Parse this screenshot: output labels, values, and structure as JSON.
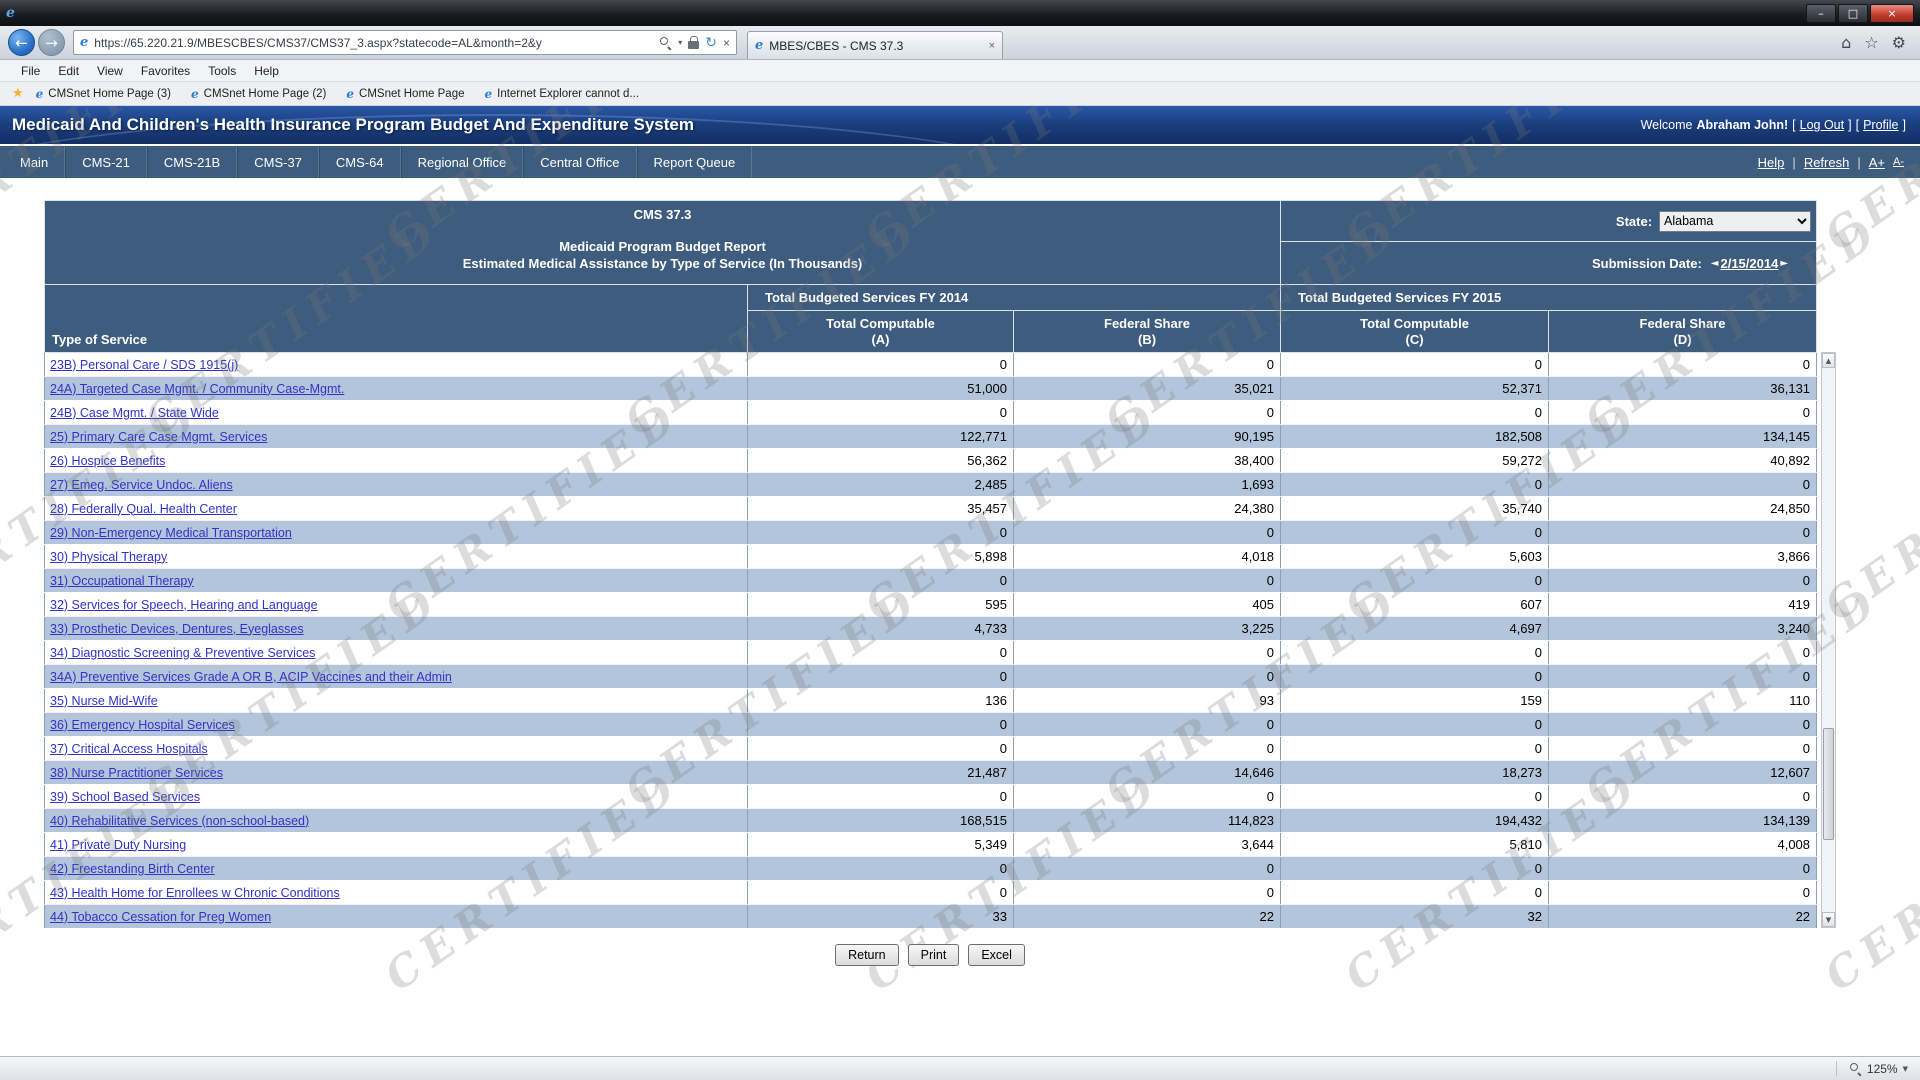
{
  "browser": {
    "url": "https://65.220.21.9/MBESCBES/CMS37/CMS37_3.aspx?statecode=AL&month=2&y",
    "tab_title": "MBES/CBES - CMS 37.3",
    "menu_items": [
      "File",
      "Edit",
      "View",
      "Favorites",
      "Tools",
      "Help"
    ],
    "favorites_items": [
      "CMSnet Home Page (3)",
      "CMSnet Home Page (2)",
      "CMSnet Home Page",
      "Internet Explorer cannot d..."
    ],
    "zoom_level": "125%"
  },
  "icons": {
    "back": "←",
    "forward": "→",
    "search_caret": "▾",
    "stop": "×",
    "refresh": "↻",
    "tab_close": "×",
    "home": "⌂",
    "star_outline": "☆",
    "tools_gear": "⚙",
    "favorites_star": "★",
    "minimize": "–",
    "maximize": "□",
    "close": "×",
    "prev_date": "◄",
    "next_date": "►",
    "scroll_up": "▲",
    "scroll_down": "▼",
    "zoom_caret": "▼"
  },
  "header": {
    "title": "Medicaid And Children's Health Insurance Program Budget And Expenditure System",
    "welcome_prefix": "Welcome",
    "user": "Abraham John!",
    "bracket_open": "[",
    "bracket_close": "]",
    "logout": "Log Out",
    "profile": "Profile"
  },
  "nav": {
    "items": [
      "Main",
      "CMS-21",
      "CMS-21B",
      "CMS-37",
      "CMS-64",
      "Regional Office",
      "Central Office",
      "Report Queue"
    ],
    "help": "Help",
    "refresh": "Refresh",
    "separator": "|",
    "font_increase": "A+",
    "font_decrease": "A-"
  },
  "report": {
    "code": "CMS 37.3",
    "title_line1": "Medicaid Program Budget Report",
    "title_line2": "Estimated Medical Assistance by Type of Service (In Thousands)",
    "state_label": "State:",
    "state_value": "Alabama",
    "submission_label": "Submission Date:",
    "submission_date": "2/15/2014",
    "group_fy2014": "Total Budgeted Services FY 2014",
    "group_fy2015": "Total Budgeted Services FY 2015",
    "type_of_service": "Type of Service",
    "columns": [
      {
        "line1": "Total Computable",
        "line2": "(A)"
      },
      {
        "line1": "Federal Share",
        "line2": "(B)"
      },
      {
        "line1": "Total Computable",
        "line2": "(C)"
      },
      {
        "line1": "Federal Share",
        "line2": "(D)"
      }
    ],
    "rows": [
      {
        "label": "23B) Personal Care / SDS 1915(j)",
        "values": [
          "0",
          "0",
          "0",
          "0"
        ]
      },
      {
        "label": "24A) Targeted Case Mgmt. / Community Case-Mgmt.",
        "values": [
          "51,000",
          "35,021",
          "52,371",
          "36,131"
        ]
      },
      {
        "label": "24B) Case Mgmt. / State Wide",
        "values": [
          "0",
          "0",
          "0",
          "0"
        ]
      },
      {
        "label": "25) Primary Care Case Mgmt. Services",
        "values": [
          "122,771",
          "90,195",
          "182,508",
          "134,145"
        ]
      },
      {
        "label": "26) Hospice Benefits",
        "values": [
          "56,362",
          "38,400",
          "59,272",
          "40,892"
        ]
      },
      {
        "label": "27) Emeg. Service Undoc. Aliens",
        "values": [
          "2,485",
          "1,693",
          "0",
          "0"
        ]
      },
      {
        "label": "28) Federally Qual. Health Center",
        "values": [
          "35,457",
          "24,380",
          "35,740",
          "24,850"
        ]
      },
      {
        "label": "29) Non-Emergency Medical Transportation",
        "values": [
          "0",
          "0",
          "0",
          "0"
        ]
      },
      {
        "label": "30) Physical Therapy",
        "values": [
          "5,898",
          "4,018",
          "5,603",
          "3,866"
        ]
      },
      {
        "label": "31) Occupational Therapy",
        "values": [
          "0",
          "0",
          "0",
          "0"
        ]
      },
      {
        "label": "32) Services for Speech, Hearing and Language",
        "values": [
          "595",
          "405",
          "607",
          "419"
        ]
      },
      {
        "label": "33) Prosthetic Devices, Dentures, Eyeglasses",
        "values": [
          "4,733",
          "3,225",
          "4,697",
          "3,240"
        ]
      },
      {
        "label": "34) Diagnostic Screening & Preventive Services",
        "values": [
          "0",
          "0",
          "0",
          "0"
        ]
      },
      {
        "label": "34A) Preventive Services Grade A OR B, ACIP Vaccines and their Admin",
        "values": [
          "0",
          "0",
          "0",
          "0"
        ]
      },
      {
        "label": "35) Nurse Mid-Wife",
        "values": [
          "136",
          "93",
          "159",
          "110"
        ]
      },
      {
        "label": "36) Emergency Hospital Services",
        "values": [
          "0",
          "0",
          "0",
          "0"
        ]
      },
      {
        "label": "37) Critical Access Hospitals",
        "values": [
          "0",
          "0",
          "0",
          "0"
        ]
      },
      {
        "label": "38) Nurse Practitioner Services",
        "values": [
          "21,487",
          "14,646",
          "18,273",
          "12,607"
        ]
      },
      {
        "label": "39) School Based Services",
        "values": [
          "0",
          "0",
          "0",
          "0"
        ]
      },
      {
        "label": "40) Rehabilitative Services (non-school-based)",
        "values": [
          "168,515",
          "114,823",
          "194,432",
          "134,139"
        ]
      },
      {
        "label": "41) Private Duty Nursing",
        "values": [
          "5,349",
          "3,644",
          "5,810",
          "4,008"
        ]
      },
      {
        "label": "42) Freestanding Birth Center",
        "values": [
          "0",
          "0",
          "0",
          "0"
        ]
      },
      {
        "label": "43) Health Home for Enrollees w Chronic Conditions",
        "values": [
          "0",
          "0",
          "0",
          "0"
        ]
      },
      {
        "label": "44) Tobacco Cessation for Preg Women",
        "values": [
          "33",
          "22",
          "32",
          "22"
        ]
      }
    ]
  },
  "buttons": {
    "return_label": "Return",
    "print_label": "Print",
    "excel_label": "Excel"
  },
  "watermark": {
    "text": "CERTIFIED"
  }
}
